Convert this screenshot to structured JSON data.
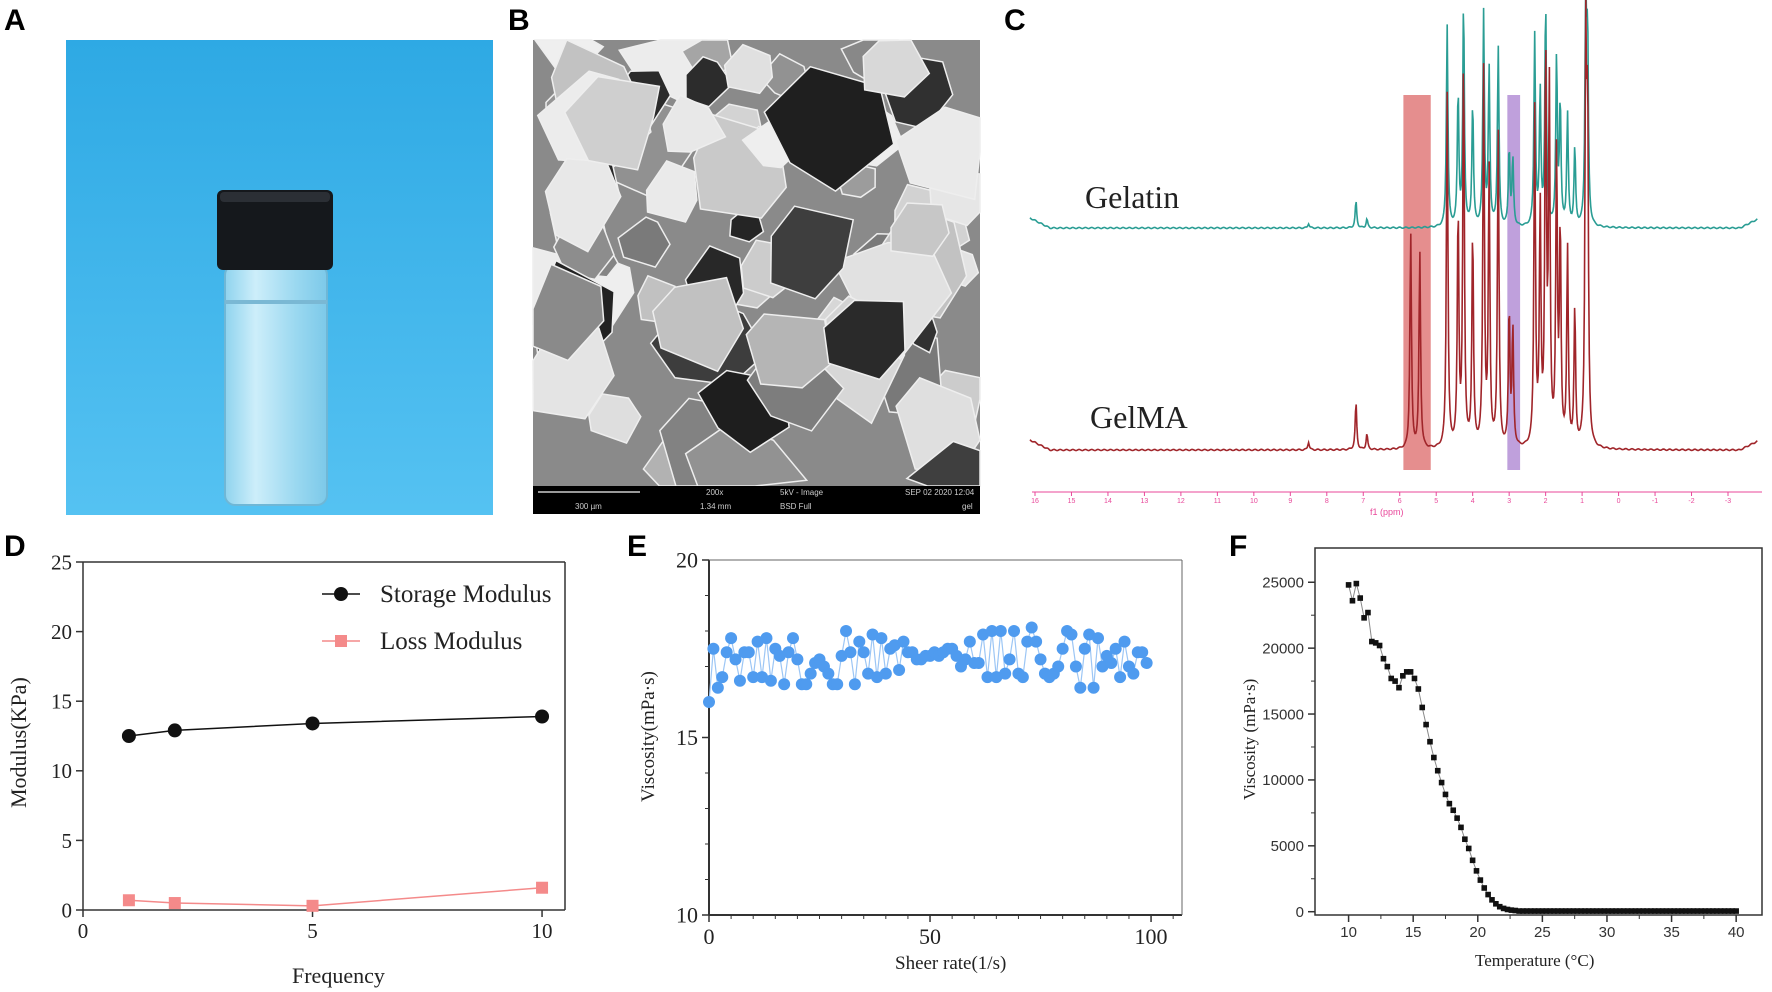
{
  "panels": {
    "a": "A",
    "b": "B",
    "c": "C",
    "d": "D",
    "e": "E",
    "f": "F"
  },
  "sem_info": {
    "scale": "300 µm",
    "mag": "200x",
    "hfw": "1.34 mm",
    "mode": "5kV - Image",
    "detector": "BSD Full",
    "date": "SEP 02 2020 12:04",
    "label": "gel"
  },
  "colors": {
    "photo_bg": "#3db3ea",
    "gelatin": "#2a9d94",
    "gelma": "#a0252a",
    "red_band": "#e07a7a",
    "purple_band": "#b48fd6",
    "ppm_axis": "#e8479a",
    "storage": "#111111",
    "loss": "#f48a8a",
    "viscosity_e": "#4f9bef",
    "viscosity_f": "#111111"
  },
  "chart_data": [
    {
      "panel": "C",
      "type": "line",
      "xlabel": "f1 (ppm)",
      "xticks": [
        "16",
        "15",
        "14",
        "13",
        "12",
        "11",
        "10",
        "9",
        "8",
        "7",
        "6",
        "5",
        "4",
        "3",
        "2",
        "1",
        "0",
        "-1",
        "-2",
        "-3"
      ],
      "xlim": [
        16,
        -3.8
      ],
      "series": [
        {
          "name": "Gelatin",
          "peaks": [
            [
              7.2,
              0.12
            ],
            [
              6.9,
              0.04
            ],
            [
              4.7,
              0.9
            ],
            [
              4.4,
              0.6
            ],
            [
              4.25,
              1.0
            ],
            [
              4.0,
              0.55
            ],
            [
              3.7,
              0.95
            ],
            [
              3.55,
              0.7
            ],
            [
              3.3,
              0.8
            ],
            [
              3.0,
              0.35
            ],
            [
              2.9,
              0.3
            ],
            [
              2.3,
              0.85
            ],
            [
              2.15,
              0.6
            ],
            [
              2.0,
              1.0
            ],
            [
              1.7,
              0.75
            ],
            [
              1.6,
              0.55
            ],
            [
              1.4,
              0.5
            ],
            [
              1.2,
              0.35
            ],
            [
              0.9,
              1.0
            ],
            [
              0.85,
              0.8
            ],
            [
              8.5,
              0.02
            ]
          ]
        },
        {
          "name": "GelMA",
          "peaks": [
            [
              7.2,
              0.12
            ],
            [
              6.9,
              0.04
            ],
            [
              5.7,
              0.55
            ],
            [
              5.45,
              0.5
            ],
            [
              4.7,
              0.9
            ],
            [
              4.4,
              0.6
            ],
            [
              4.25,
              1.0
            ],
            [
              4.0,
              0.55
            ],
            [
              3.7,
              0.95
            ],
            [
              3.55,
              0.7
            ],
            [
              3.3,
              0.8
            ],
            [
              3.0,
              0.35
            ],
            [
              2.9,
              0.3
            ],
            [
              2.3,
              0.85
            ],
            [
              2.15,
              0.6
            ],
            [
              2.0,
              1.0
            ],
            [
              1.9,
              0.9
            ],
            [
              1.7,
              0.75
            ],
            [
              1.6,
              0.55
            ],
            [
              1.4,
              0.5
            ],
            [
              1.2,
              0.35
            ],
            [
              0.9,
              1.0
            ],
            [
              0.85,
              0.8
            ],
            [
              8.5,
              0.02
            ]
          ]
        }
      ],
      "highlight_bands_ppm": [
        [
          5.9,
          5.15
        ],
        [
          3.05,
          2.7
        ]
      ]
    },
    {
      "panel": "D",
      "type": "line",
      "xlabel": "Frequency",
      "ylabel": "Modulus(KPa)",
      "xlim": [
        0,
        10.5
      ],
      "ylim": [
        0,
        25
      ],
      "xticks": [
        0,
        5,
        10
      ],
      "yticks": [
        0,
        5,
        10,
        15,
        20,
        25
      ],
      "x": [
        1,
        2,
        5,
        10
      ],
      "series": [
        {
          "name": "Storage Modulus",
          "marker": "circle",
          "values": [
            12.5,
            12.9,
            13.4,
            13.9
          ]
        },
        {
          "name": "Loss Modulus",
          "marker": "square",
          "values": [
            0.7,
            0.5,
            0.3,
            1.6
          ]
        }
      ],
      "legend": "top-right"
    },
    {
      "panel": "E",
      "type": "line",
      "xlabel": "Sheer rate(1/s)",
      "ylabel": "Viscosity(mPa·s)",
      "xlim": [
        0,
        107
      ],
      "ylim": [
        10,
        20
      ],
      "xticks": [
        0,
        50,
        100
      ],
      "yticks": [
        10,
        15,
        20
      ],
      "x_start": 0,
      "x_step": 1,
      "values": [
        16.0,
        17.5,
        16.4,
        16.7,
        17.4,
        17.8,
        17.2,
        16.6,
        17.4,
        17.4,
        16.7,
        17.7,
        16.7,
        17.8,
        16.6,
        17.5,
        17.3,
        16.5,
        17.4,
        17.8,
        17.2,
        16.5,
        16.5,
        16.8,
        17.1,
        17.2,
        17.0,
        16.8,
        16.5,
        16.5,
        17.3,
        18.0,
        17.4,
        16.5,
        17.7,
        17.4,
        16.8,
        17.9,
        16.7,
        17.8,
        16.8,
        17.5,
        17.6,
        16.9,
        17.7,
        17.4,
        17.4,
        17.2,
        17.2,
        17.3,
        17.3,
        17.4,
        17.3,
        17.4,
        17.5,
        17.5,
        17.3,
        17.0,
        17.2,
        17.7,
        17.1,
        17.1,
        17.9,
        16.7,
        18.0,
        16.7,
        18.0,
        16.8,
        17.2,
        18.0,
        16.8,
        16.7,
        17.7,
        18.1,
        17.7,
        17.2,
        16.8,
        16.7,
        16.8,
        17.0,
        17.5,
        18.0,
        17.9,
        17.0,
        16.4,
        17.5,
        17.9,
        16.4,
        17.8,
        17.0,
        17.3,
        17.1,
        17.5,
        16.7,
        17.7,
        17.0,
        16.8,
        17.4,
        17.4,
        17.1
      ]
    },
    {
      "panel": "F",
      "type": "line",
      "xlabel": "Temperature (°C)",
      "ylabel": "Viscosity (mPa·s)",
      "xlim": [
        7.4,
        42
      ],
      "ylim": [
        -250,
        27600
      ],
      "xticks": [
        10,
        15,
        20,
        25,
        30,
        35,
        40
      ],
      "yticks": [
        0,
        5000,
        10000,
        15000,
        20000,
        25000
      ],
      "x": [
        10,
        10.3,
        10.6,
        10.9,
        11.2,
        11.5,
        11.8,
        12.1,
        12.4,
        12.7,
        13,
        13.3,
        13.6,
        13.9,
        14.2,
        14.5,
        14.8,
        15.1,
        15.4,
        15.7,
        16,
        16.3,
        16.6,
        16.9,
        17.2,
        17.5,
        17.8,
        18.1,
        18.4,
        18.7,
        19,
        19.3,
        19.6,
        19.9,
        20.2,
        20.5,
        20.8,
        21.1,
        21.4,
        21.7,
        22,
        22.3,
        22.6,
        22.9
      ],
      "values": [
        24800,
        23600,
        24900,
        23800,
        22300,
        22700,
        20500,
        20400,
        20200,
        19200,
        18600,
        17700,
        17500,
        17000,
        17900,
        18200,
        18200,
        17700,
        16900,
        15500,
        14200,
        12900,
        11700,
        10700,
        9800,
        8900,
        8200,
        7700,
        7100,
        6400,
        5500,
        4800,
        3900,
        3100,
        2400,
        1800,
        1300,
        900,
        600,
        380,
        250,
        170,
        120,
        90
      ],
      "tail": {
        "x_from": 23.2,
        "x_to": 40,
        "x_step": 0.3,
        "value": 50
      }
    }
  ]
}
